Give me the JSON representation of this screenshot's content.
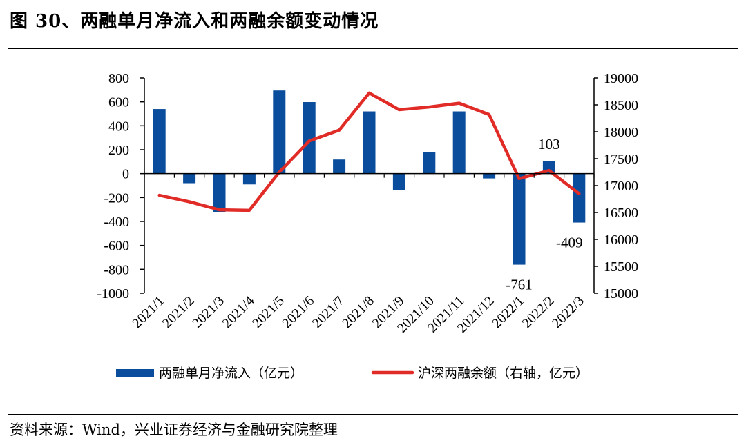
{
  "header": {
    "title": "图 30、两融单月净流入和两融余额变动情况"
  },
  "footer": {
    "source": "资料来源：Wind，兴业证券经济与金融研究院整理"
  },
  "colors": {
    "bar": "#0a4d9c",
    "line": "#e02b27",
    "axis": "#000000"
  },
  "chart_data": {
    "type": "bar+line",
    "title": "两融单月净流入和两融余额变动情况",
    "categories": [
      "2021/1",
      "2021/2",
      "2021/3",
      "2021/4",
      "2021/5",
      "2021/6",
      "2021/7",
      "2021/8",
      "2021/9",
      "2021/10",
      "2021/11",
      "2021/12",
      "2022/1",
      "2022/2",
      "2022/3"
    ],
    "series": [
      {
        "name": "两融单月净流入（亿元）",
        "type": "bar",
        "axis": "left",
        "values": [
          540,
          -80,
          -325,
          -90,
          695,
          598,
          118,
          520,
          -140,
          178,
          520,
          -40,
          -761,
          103,
          -409
        ]
      },
      {
        "name": "沪深两融余额（右轴，亿元）",
        "type": "line",
        "axis": "right",
        "values": [
          16820,
          16700,
          16550,
          16540,
          17250,
          17830,
          18030,
          18720,
          18410,
          18460,
          18530,
          18320,
          17130,
          17280,
          16850
        ]
      }
    ],
    "y_left": {
      "min": -1000,
      "max": 800,
      "step": 200,
      "ticks": [
        "800",
        "600",
        "400",
        "200",
        "0",
        "-200",
        "-400",
        "-600",
        "-800",
        "-1000"
      ]
    },
    "y_right": {
      "min": 15000,
      "max": 19000,
      "step": 500,
      "ticks": [
        "19000",
        "18500",
        "18000",
        "17500",
        "17000",
        "16500",
        "16000",
        "15500",
        "15000"
      ]
    },
    "data_labels": [
      {
        "category": "2022/1",
        "text": "-761"
      },
      {
        "category": "2022/2",
        "text": "103"
      },
      {
        "category": "2022/3",
        "text": "-409"
      }
    ],
    "legend": {
      "position": "bottom",
      "items": [
        "两融单月净流入（亿元）",
        "沪深两融余额（右轴，亿元）"
      ]
    },
    "grid": false
  }
}
